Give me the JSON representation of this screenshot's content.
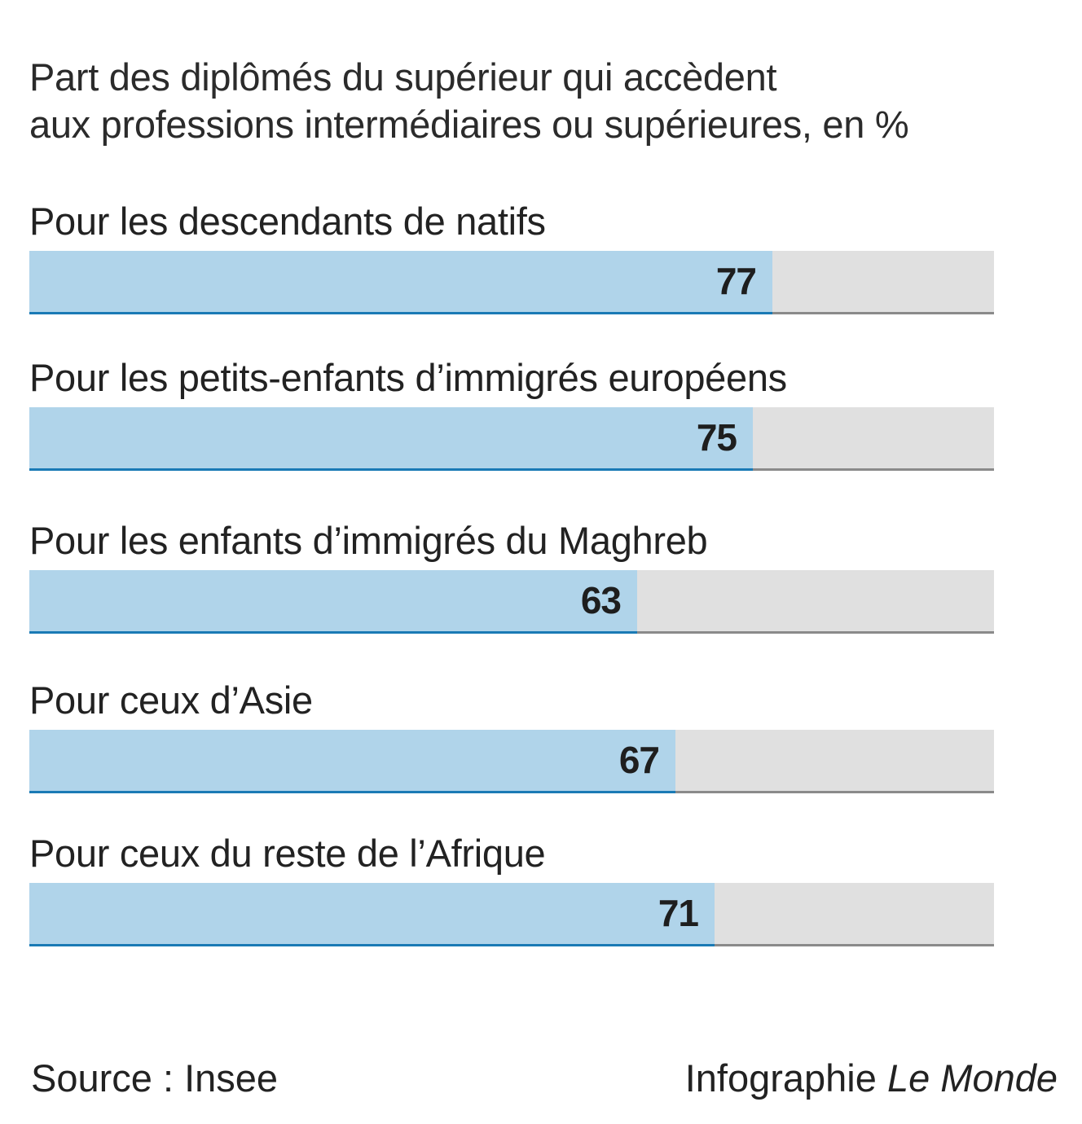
{
  "chart_data": {
    "type": "bar",
    "orientation": "horizontal",
    "title": "Part des diplômés du supérieur qui accèdent aux professions intermédiaires ou supérieures, en %",
    "title_lines": [
      "Part des diplômés du supérieur qui accèdent",
      "aux professions intermédiaires ou supérieures, en %"
    ],
    "categories": [
      "Pour les descendants de natifs",
      "Pour les petits-enfants d’immigrés européens",
      "Pour les enfants d’immigrés du Maghreb",
      "Pour ceux d’Asie",
      "Pour ceux du reste de l’Afrique"
    ],
    "values": [
      77,
      75,
      63,
      67,
      71
    ],
    "xlim": [
      0,
      100
    ],
    "xlabel": "",
    "ylabel": "",
    "grid": false,
    "legend": "none",
    "colors": {
      "fill": "#b0d4ea",
      "fill_border": "#1a7ab5",
      "track": "#e0e0e0",
      "track_border": "#8a8a8a"
    }
  },
  "footer": {
    "source": "Source : Insee",
    "credit_prefix": "Infographie ",
    "credit_brand": "Le Monde"
  }
}
